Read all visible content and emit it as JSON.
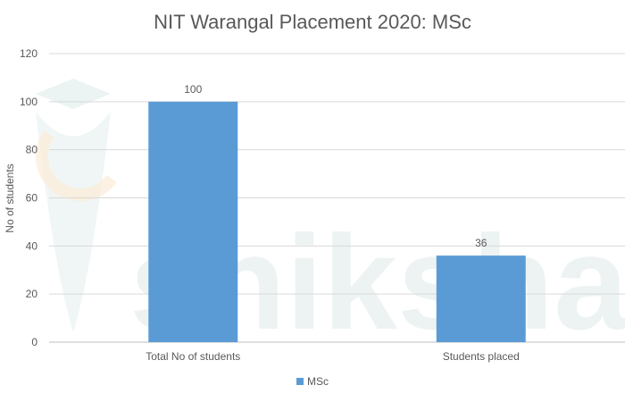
{
  "watermark": "shiksha",
  "chart_data": {
    "type": "bar",
    "title": "NIT Warangal Placement 2020: MSc",
    "xlabel": "",
    "ylabel": "No of students",
    "categories": [
      "Total No of students",
      "Students placed"
    ],
    "series": [
      {
        "name": "MSc",
        "values": [
          100,
          36
        ],
        "color": "#5B9BD5"
      }
    ],
    "ylim": [
      0,
      120
    ],
    "yticks": [
      0,
      20,
      40,
      60,
      80,
      100,
      120
    ],
    "grid": true,
    "legend": "bottom"
  }
}
